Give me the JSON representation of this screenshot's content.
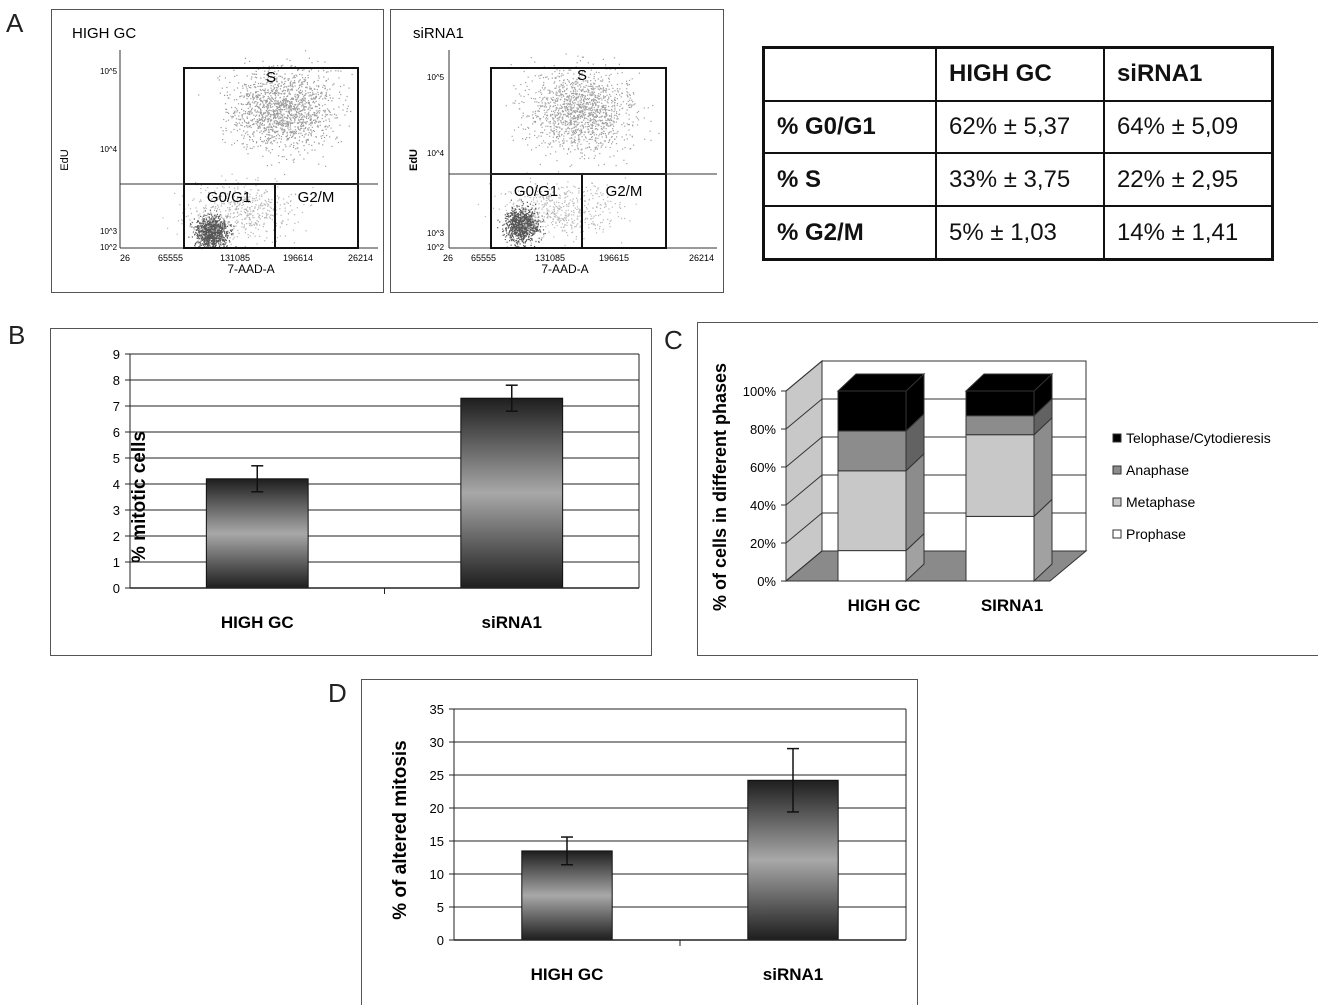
{
  "panel_labels": {
    "a": "A",
    "b": "B",
    "c": "C",
    "d": "D"
  },
  "flow": [
    {
      "title": "HIGH GC",
      "ylabel": "EdU",
      "xlabel": "7-AAD-A",
      "yticks": [
        "10^5",
        "10^4",
        "10^3",
        "10^2"
      ],
      "xticks": [
        "26",
        "65555",
        "131085",
        "196614",
        "26214"
      ],
      "gates": [
        "S",
        "G0/G1",
        "G2/M"
      ]
    },
    {
      "title": "siRNA1",
      "ylabel": "EdU",
      "xlabel": "7-AAD-A",
      "yticks": [
        "10^5",
        "10^4",
        "10^3",
        "10^2"
      ],
      "xticks": [
        "26",
        "65555",
        "131085",
        "196615",
        "26214"
      ],
      "gates": [
        "S",
        "G0/G1",
        "G2/M"
      ]
    }
  ],
  "table": {
    "header": [
      "",
      "HIGH GC",
      "siRNA1"
    ],
    "rows": [
      [
        "% G0/G1",
        "62% ± 5,37",
        "64% ± 5,09"
      ],
      [
        "% S",
        "33% ± 3,75",
        "22% ± 2,95"
      ],
      [
        "% G2/M",
        "5% ± 1,03",
        "14% ± 1,41"
      ]
    ]
  },
  "chart_data": [
    {
      "type": "bar",
      "panel": "B",
      "categories": [
        "HIGH GC",
        "siRNA1"
      ],
      "values": [
        4.2,
        7.3
      ],
      "errors": [
        0.5,
        0.5
      ],
      "ylabel": "% mitotic cells",
      "ylim": [
        0,
        9
      ],
      "yticks": [
        "0",
        "1",
        "2",
        "3",
        "4",
        "5",
        "6",
        "7",
        "8",
        "9"
      ],
      "grid": true
    },
    {
      "type": "bar",
      "panel": "C",
      "stacked": true,
      "categories": [
        "HIGH GC",
        "SIRNA1"
      ],
      "series": [
        {
          "name": "Prophase",
          "values": [
            16,
            34
          ],
          "color": "#ffffff"
        },
        {
          "name": "Metaphase",
          "values": [
            42,
            43
          ],
          "color": "#c8c8c8"
        },
        {
          "name": "Anaphase",
          "values": [
            21,
            10
          ],
          "color": "#8c8c8c"
        },
        {
          "name": "Telophase/Cytodieresis",
          "values": [
            21,
            13
          ],
          "color": "#000000"
        }
      ],
      "legend_order": [
        "Telophase/Cytodieresis",
        "Anaphase",
        "Metaphase",
        "Prophase"
      ],
      "ylabel": "% of cells in different phases",
      "ylim": [
        0,
        100
      ],
      "yticks": [
        "0%",
        "20%",
        "40%",
        "60%",
        "80%",
        "100%"
      ],
      "legend": "right",
      "grid": true
    },
    {
      "type": "bar",
      "panel": "D",
      "categories": [
        "HIGH GC",
        "siRNA1"
      ],
      "values": [
        13.5,
        24.2
      ],
      "errors": [
        2.1,
        4.8
      ],
      "ylabel": "% of altered mitosis",
      "ylim": [
        0,
        35
      ],
      "yticks": [
        "0",
        "5",
        "10",
        "15",
        "20",
        "25",
        "30",
        "35"
      ],
      "grid": true
    }
  ]
}
